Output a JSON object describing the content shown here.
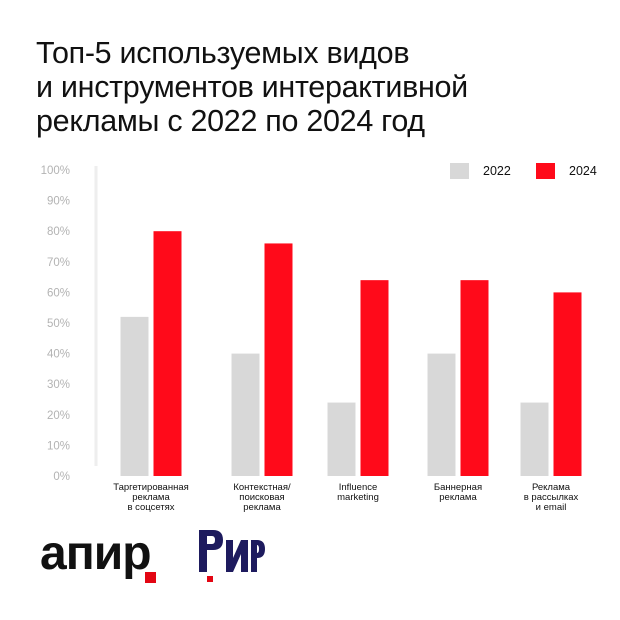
{
  "title_lines": [
    "Топ-5 используемых видов",
    "и инструментов интерактивной",
    "рекламы с 2022 по 2024 год"
  ],
  "legend": [
    {
      "label": "2022",
      "color": "#d8d8d8"
    },
    {
      "label": "2024",
      "color": "#ff0a1a"
    }
  ],
  "chart_data": {
    "type": "bar",
    "title": "Топ-5 используемых видов и инструментов интерактивной рекламы с 2022 по 2024 год",
    "categories": [
      [
        "Таргетированная",
        "реклама",
        "в соцсетях"
      ],
      [
        "Контекстная/",
        "поисковая",
        "реклама"
      ],
      [
        "Influence",
        "marketing"
      ],
      [
        "Баннерная",
        "реклама"
      ],
      [
        "Реклама",
        "в рассылках",
        "и email"
      ]
    ],
    "series": [
      {
        "name": "2022",
        "color": "#d8d8d8",
        "values": [
          52,
          40,
          24,
          40,
          24
        ]
      },
      {
        "name": "2024",
        "color": "#ff0a1a",
        "values": [
          80,
          76,
          64,
          64,
          60
        ]
      }
    ],
    "ylim": [
      0,
      100
    ],
    "yticks": [
      "0%",
      "10%",
      "20%",
      "30%",
      "40%",
      "50%",
      "60%",
      "70%",
      "80%",
      "90%",
      "100%"
    ],
    "xlabel": "",
    "ylabel": "",
    "legend_position": "top-right",
    "grid": false
  },
  "logos": {
    "apir": {
      "text": "апир",
      "dot_color": "#e30613"
    },
    "rir": {
      "text": "РИР",
      "color": "#1e1b5e",
      "accent": "#e30613"
    }
  }
}
